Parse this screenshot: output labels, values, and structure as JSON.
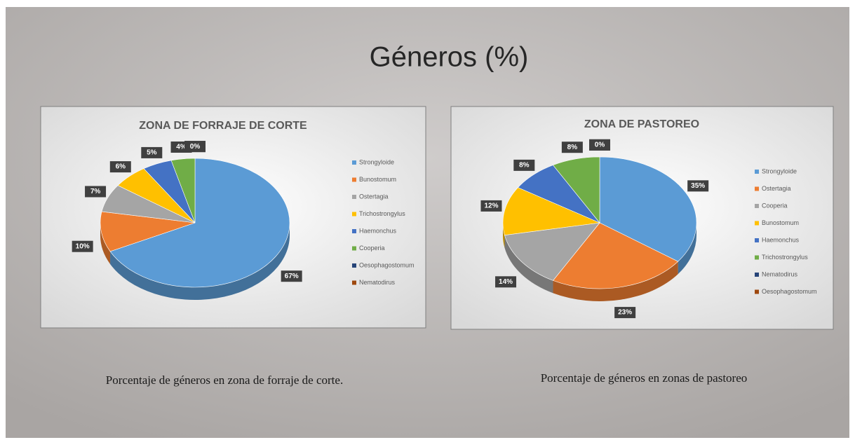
{
  "title": "Géneros  (%)",
  "captions": [
    "Porcentaje de géneros en zona de forraje de corte.",
    "Porcentaje de géneros en zonas de pastoreo"
  ],
  "chart_data": [
    {
      "type": "pie",
      "title": "ZONA DE FORRAJE DE CORTE",
      "categories": [
        "Strongyloide",
        "Bunostomum",
        "Ostertagia",
        "Trichostrongylus",
        "Haemonchus",
        "Cooperia",
        "Oesophagostomum",
        "Nematodirus"
      ],
      "values": [
        67,
        10,
        7,
        6,
        5,
        4,
        0,
        0
      ],
      "value_labels": [
        "67%",
        "10%",
        "7%",
        "6%",
        "5%",
        "4%",
        "0%",
        "0%"
      ],
      "colors": [
        "#5b9bd5",
        "#ed7d31",
        "#a5a5a5",
        "#ffc000",
        "#4472c4",
        "#70ad47",
        "#264478",
        "#9e480e"
      ]
    },
    {
      "type": "pie",
      "title": "ZONA DE PASTOREO",
      "categories": [
        "Strongyloide",
        "Ostertagia",
        "Cooperia",
        "Bunostomum",
        "Haemonchus",
        "Trichostrongylus",
        "Nematodirus",
        "Oesophagostomum"
      ],
      "values": [
        35,
        23,
        14,
        12,
        8,
        8,
        0,
        0
      ],
      "value_labels": [
        "35%",
        "23%",
        "14%",
        "12%",
        "8%",
        "8%",
        "0%",
        "0%"
      ],
      "colors": [
        "#5b9bd5",
        "#ed7d31",
        "#a5a5a5",
        "#ffc000",
        "#4472c4",
        "#70ad47",
        "#264478",
        "#9e480e"
      ]
    }
  ]
}
